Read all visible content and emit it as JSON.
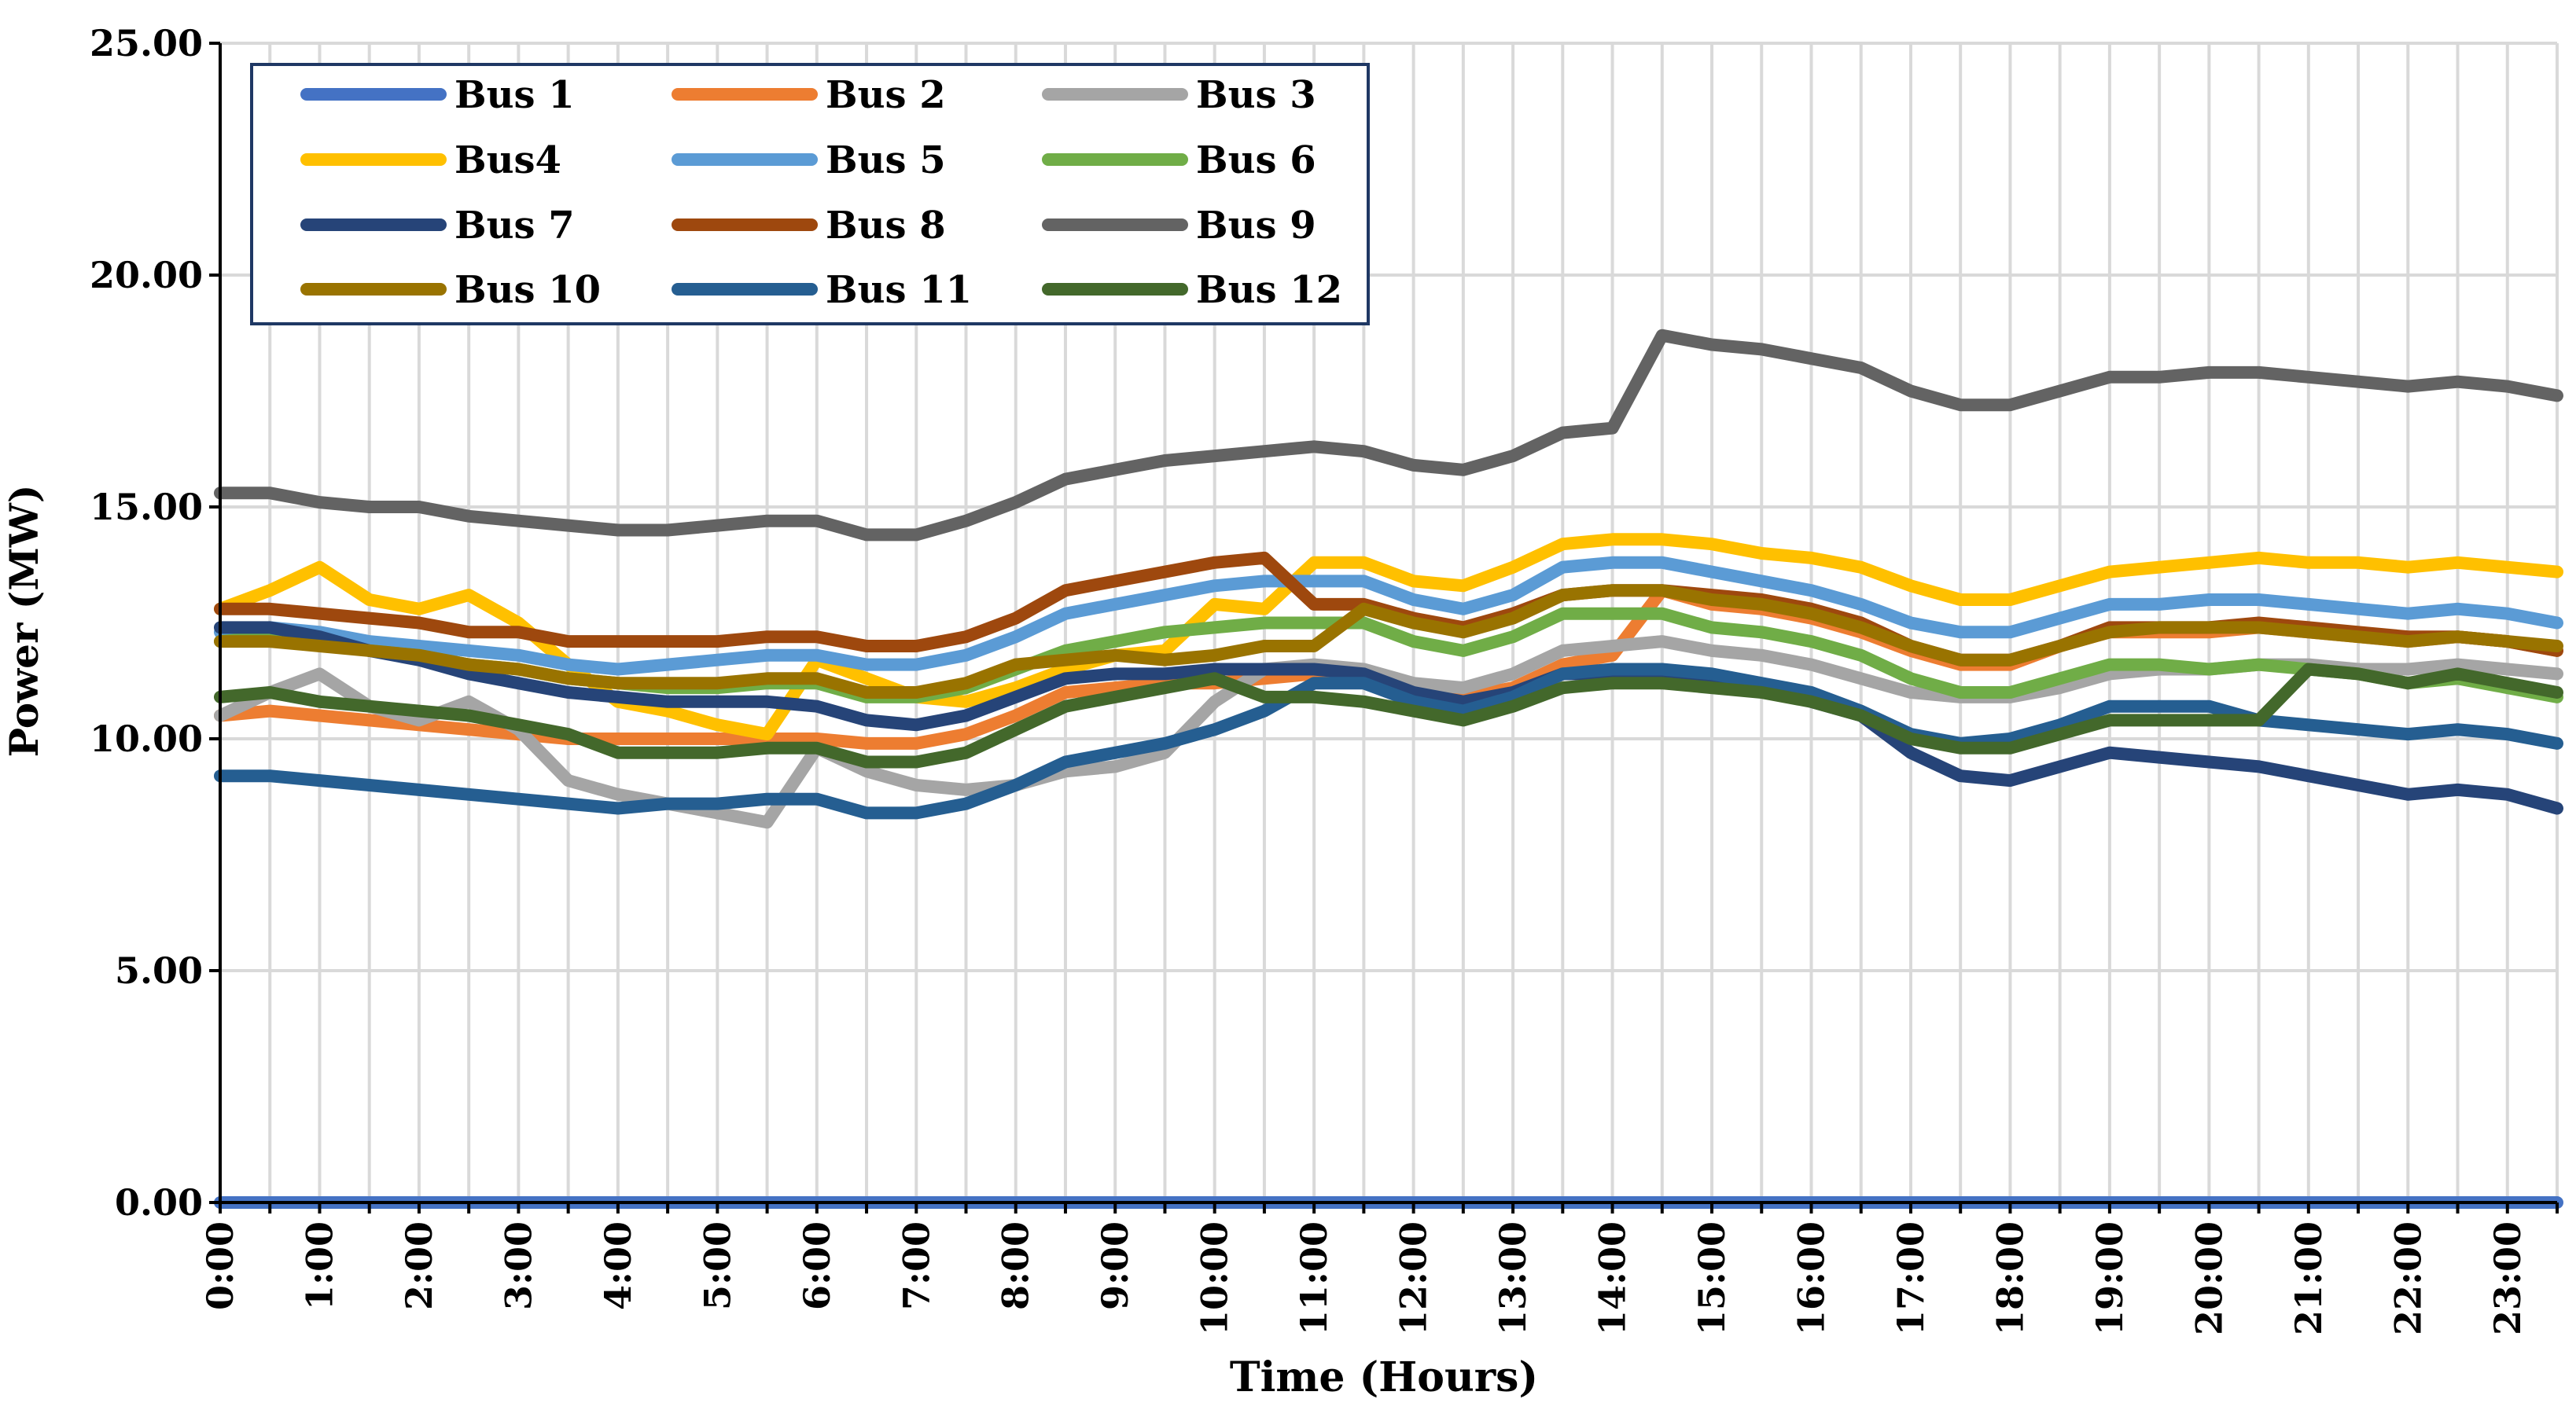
{
  "chart_data": {
    "type": "line",
    "title": "",
    "xlabel": "Time (Hours)",
    "ylabel": "Power (MW)",
    "ylim": [
      0,
      25
    ],
    "yticks": [
      "0.00",
      "5.00",
      "10.00",
      "15.00",
      "20.00",
      "25.00"
    ],
    "xticks": [
      "0:00",
      "1:00",
      "2:00",
      "3:00",
      "4:00",
      "5:00",
      "6:00",
      "7:00",
      "8:00",
      "9:00",
      "10:00",
      "11:00",
      "12:00",
      "13:00",
      "14:00",
      "15:00",
      "16:00",
      "17:00",
      "18:00",
      "19:00",
      "20:00",
      "21:00",
      "22:00",
      "23:00"
    ],
    "x_hours": [
      0,
      0.5,
      1,
      1.5,
      2,
      2.5,
      3,
      3.5,
      4,
      4.5,
      5,
      5.5,
      6,
      6.5,
      7,
      7.5,
      8,
      8.5,
      9,
      9.5,
      10,
      10.5,
      11,
      11.5,
      12,
      12.5,
      13,
      13.5,
      14,
      14.5,
      15,
      15.5,
      16,
      16.5,
      17,
      17.5,
      18,
      18.5,
      19,
      19.5,
      20,
      20.5,
      21,
      21.5,
      22,
      22.5,
      23,
      23.5
    ],
    "grid": true,
    "legend_position": "top-left",
    "series": [
      {
        "name": "Bus 1",
        "color": "#4472C4",
        "values": [
          0,
          0,
          0,
          0,
          0,
          0,
          0,
          0,
          0,
          0,
          0,
          0,
          0,
          0,
          0,
          0,
          0,
          0,
          0,
          0,
          0,
          0,
          0,
          0,
          0,
          0,
          0,
          0,
          0,
          0,
          0,
          0,
          0,
          0,
          0,
          0,
          0,
          0,
          0,
          0,
          0,
          0,
          0,
          0,
          0,
          0,
          0,
          0
        ]
      },
      {
        "name": "Bus 2",
        "color": "#ED7D31",
        "values": [
          10.5,
          10.6,
          10.5,
          10.4,
          10.3,
          10.2,
          10.1,
          10.0,
          10.0,
          10.0,
          10.0,
          10.0,
          10.0,
          9.9,
          9.9,
          10.1,
          10.5,
          11.0,
          11.1,
          11.2,
          11.2,
          11.3,
          11.4,
          11.4,
          11.1,
          10.9,
          11.1,
          11.6,
          11.8,
          13.2,
          12.9,
          12.8,
          12.6,
          12.3,
          11.9,
          11.6,
          11.6,
          12.0,
          12.3,
          12.3,
          12.3,
          12.4,
          12.3,
          12.2,
          12.1,
          12.2,
          12.1,
          11.9
        ]
      },
      {
        "name": "Bus 3",
        "color": "#A5A5A5",
        "values": [
          10.5,
          11.0,
          11.4,
          10.7,
          10.4,
          10.8,
          10.2,
          9.1,
          8.8,
          8.6,
          8.4,
          8.2,
          9.8,
          9.3,
          9.0,
          8.9,
          9.0,
          9.3,
          9.4,
          9.7,
          10.8,
          11.5,
          11.6,
          11.5,
          11.2,
          11.1,
          11.4,
          11.9,
          12.0,
          12.1,
          11.9,
          11.8,
          11.6,
          11.3,
          11.0,
          10.9,
          10.9,
          11.1,
          11.4,
          11.5,
          11.5,
          11.6,
          11.6,
          11.5,
          11.5,
          11.6,
          11.5,
          11.4
        ]
      },
      {
        "name": "Bus4",
        "color": "#FFC000",
        "values": [
          12.8,
          13.2,
          13.7,
          13.0,
          12.8,
          13.1,
          12.5,
          11.6,
          10.8,
          10.6,
          10.3,
          10.1,
          11.7,
          11.3,
          10.9,
          10.8,
          11.1,
          11.5,
          11.8,
          11.9,
          12.9,
          12.8,
          13.8,
          13.8,
          13.4,
          13.3,
          13.7,
          14.2,
          14.3,
          14.3,
          14.2,
          14.0,
          13.9,
          13.7,
          13.3,
          13.0,
          13.0,
          13.3,
          13.6,
          13.7,
          13.8,
          13.9,
          13.8,
          13.8,
          13.7,
          13.8,
          13.7,
          13.6
        ]
      },
      {
        "name": "Bus 5",
        "color": "#5B9BD5",
        "values": [
          12.3,
          12.4,
          12.3,
          12.1,
          12.0,
          11.9,
          11.8,
          11.6,
          11.5,
          11.6,
          11.7,
          11.8,
          11.8,
          11.6,
          11.6,
          11.8,
          12.2,
          12.7,
          12.9,
          13.1,
          13.3,
          13.4,
          13.4,
          13.4,
          13.0,
          12.8,
          13.1,
          13.7,
          13.8,
          13.8,
          13.6,
          13.4,
          13.2,
          12.9,
          12.5,
          12.3,
          12.3,
          12.6,
          12.9,
          12.9,
          13.0,
          13.0,
          12.9,
          12.8,
          12.7,
          12.8,
          12.7,
          12.5
        ]
      },
      {
        "name": "Bus 6",
        "color": "#70AD47",
        "values": [
          12.1,
          12.2,
          12.1,
          11.9,
          11.8,
          11.6,
          11.5,
          11.3,
          11.2,
          11.1,
          11.1,
          11.2,
          11.2,
          10.9,
          10.9,
          11.1,
          11.5,
          11.9,
          12.1,
          12.3,
          12.4,
          12.5,
          12.5,
          12.5,
          12.1,
          11.9,
          12.2,
          12.7,
          12.7,
          12.7,
          12.4,
          12.3,
          12.1,
          11.8,
          11.3,
          11.0,
          11.0,
          11.3,
          11.6,
          11.6,
          11.5,
          11.6,
          11.5,
          11.4,
          11.2,
          11.3,
          11.1,
          10.9
        ]
      },
      {
        "name": "Bus 7",
        "color": "#264478",
        "values": [
          12.4,
          12.4,
          12.2,
          11.9,
          11.7,
          11.4,
          11.2,
          11.0,
          10.9,
          10.8,
          10.8,
          10.8,
          10.7,
          10.4,
          10.3,
          10.5,
          10.9,
          11.3,
          11.4,
          11.4,
          11.5,
          11.5,
          11.5,
          11.4,
          11.0,
          10.8,
          11.0,
          11.4,
          11.4,
          11.4,
          11.3,
          11.1,
          10.8,
          10.5,
          9.7,
          9.2,
          9.1,
          9.4,
          9.7,
          9.6,
          9.5,
          9.4,
          9.2,
          9.0,
          8.8,
          8.9,
          8.8,
          8.5
        ]
      },
      {
        "name": "Bus 8",
        "color": "#9E480E",
        "values": [
          12.8,
          12.8,
          12.7,
          12.6,
          12.5,
          12.3,
          12.3,
          12.1,
          12.1,
          12.1,
          12.1,
          12.2,
          12.2,
          12.0,
          12.0,
          12.2,
          12.6,
          13.2,
          13.4,
          13.6,
          13.8,
          13.9,
          12.9,
          12.9,
          12.6,
          12.4,
          12.7,
          13.1,
          13.2,
          13.2,
          13.1,
          13.0,
          12.8,
          12.5,
          12.0,
          11.7,
          11.7,
          12.0,
          12.4,
          12.4,
          12.4,
          12.5,
          12.4,
          12.3,
          12.2,
          12.2,
          12.1,
          11.9
        ]
      },
      {
        "name": "Bus 9",
        "color": "#636363",
        "values": [
          15.3,
          15.3,
          15.1,
          15.0,
          15.0,
          14.8,
          14.7,
          14.6,
          14.5,
          14.5,
          14.6,
          14.7,
          14.7,
          14.4,
          14.4,
          14.7,
          15.1,
          15.6,
          15.8,
          16.0,
          16.1,
          16.2,
          16.3,
          16.2,
          15.9,
          15.8,
          16.1,
          16.6,
          16.7,
          18.7,
          18.5,
          18.4,
          18.2,
          18.0,
          17.5,
          17.2,
          17.2,
          17.5,
          17.8,
          17.8,
          17.9,
          17.9,
          17.8,
          17.7,
          17.6,
          17.7,
          17.6,
          17.4
        ]
      },
      {
        "name": "Bus 10",
        "color": "#997300",
        "values": [
          12.1,
          12.1,
          12.0,
          11.9,
          11.8,
          11.6,
          11.5,
          11.3,
          11.2,
          11.2,
          11.2,
          11.3,
          11.3,
          11.0,
          11.0,
          11.2,
          11.6,
          11.7,
          11.8,
          11.7,
          11.8,
          12.0,
          12.0,
          12.8,
          12.5,
          12.3,
          12.6,
          13.1,
          13.2,
          13.2,
          13.0,
          12.9,
          12.7,
          12.4,
          12.0,
          11.7,
          11.7,
          12.0,
          12.3,
          12.4,
          12.4,
          12.4,
          12.3,
          12.2,
          12.1,
          12.2,
          12.1,
          12.0
        ]
      },
      {
        "name": "Bus 11",
        "color": "#255E91",
        "values": [
          9.2,
          9.2,
          9.1,
          9.0,
          8.9,
          8.8,
          8.7,
          8.6,
          8.5,
          8.6,
          8.6,
          8.7,
          8.7,
          8.4,
          8.4,
          8.6,
          9.0,
          9.5,
          9.7,
          9.9,
          10.2,
          10.6,
          11.2,
          11.2,
          10.8,
          10.6,
          10.9,
          11.4,
          11.5,
          11.5,
          11.4,
          11.2,
          11.0,
          10.6,
          10.1,
          9.9,
          10.0,
          10.3,
          10.7,
          10.7,
          10.7,
          10.4,
          10.3,
          10.2,
          10.1,
          10.2,
          10.1,
          9.9
        ]
      },
      {
        "name": "Bus 12",
        "color": "#43682B",
        "values": [
          10.9,
          11.0,
          10.8,
          10.7,
          10.6,
          10.5,
          10.3,
          10.1,
          9.7,
          9.7,
          9.7,
          9.8,
          9.8,
          9.5,
          9.5,
          9.7,
          10.2,
          10.7,
          10.9,
          11.1,
          11.3,
          10.9,
          10.9,
          10.8,
          10.6,
          10.4,
          10.7,
          11.1,
          11.2,
          11.2,
          11.1,
          11.0,
          10.8,
          10.5,
          10.0,
          9.8,
          9.8,
          10.1,
          10.4,
          10.4,
          10.4,
          10.4,
          11.5,
          11.4,
          11.2,
          11.4,
          11.2,
          11.0
        ]
      }
    ]
  }
}
